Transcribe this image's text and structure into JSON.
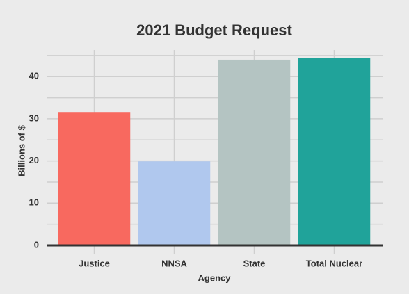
{
  "chart_data": {
    "type": "bar",
    "title": "2021 Budget Request",
    "x_label": "Agency",
    "y_label": "Billions of $",
    "categories": [
      "Justice",
      "NNSA",
      "State",
      "Total Nuclear"
    ],
    "values": [
      31.6,
      19.9,
      44.0,
      44.4
    ],
    "colors": [
      "#f8695f",
      "#b0c8ee",
      "#b4c4c2",
      "#20a39a"
    ],
    "ylim": [
      0,
      46.3
    ],
    "yticks": [
      0,
      10,
      20,
      30,
      40
    ],
    "minor_yticks": [
      5,
      15,
      25,
      35,
      45
    ],
    "grid": true
  }
}
